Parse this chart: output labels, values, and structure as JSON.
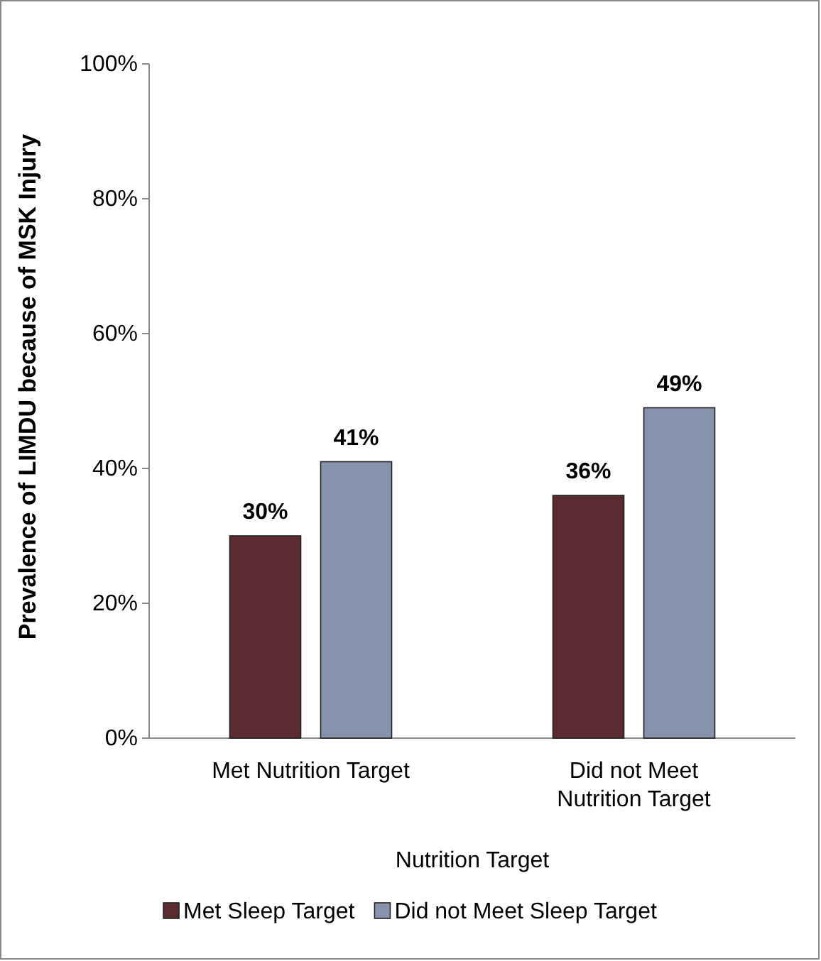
{
  "chart_data": {
    "type": "bar",
    "xlabel": "Nutrition Target",
    "ylabel": "Prevalence of LIMDU because of MSK Injury",
    "categories": [
      "Met Nutrition Target",
      "Did not Meet Nutrition Target"
    ],
    "series": [
      {
        "name": "Met Sleep Target",
        "color": "#5c2a31",
        "values": [
          30,
          36
        ]
      },
      {
        "name": "Did not Meet Sleep Target",
        "color": "#8793ad",
        "values": [
          41,
          49
        ]
      }
    ],
    "ylim": [
      0,
      100
    ],
    "yticks": [
      {
        "value": 0,
        "label": "0%"
      },
      {
        "value": 20,
        "label": "20%"
      },
      {
        "value": 40,
        "label": "40%"
      },
      {
        "value": 60,
        "label": "60%"
      },
      {
        "value": 80,
        "label": "80%"
      },
      {
        "value": 100,
        "label": "100%"
      }
    ],
    "value_labels": [
      [
        "30%",
        "36%"
      ],
      [
        "41%",
        "49%"
      ]
    ],
    "legend": "bottom",
    "grid": false
  }
}
